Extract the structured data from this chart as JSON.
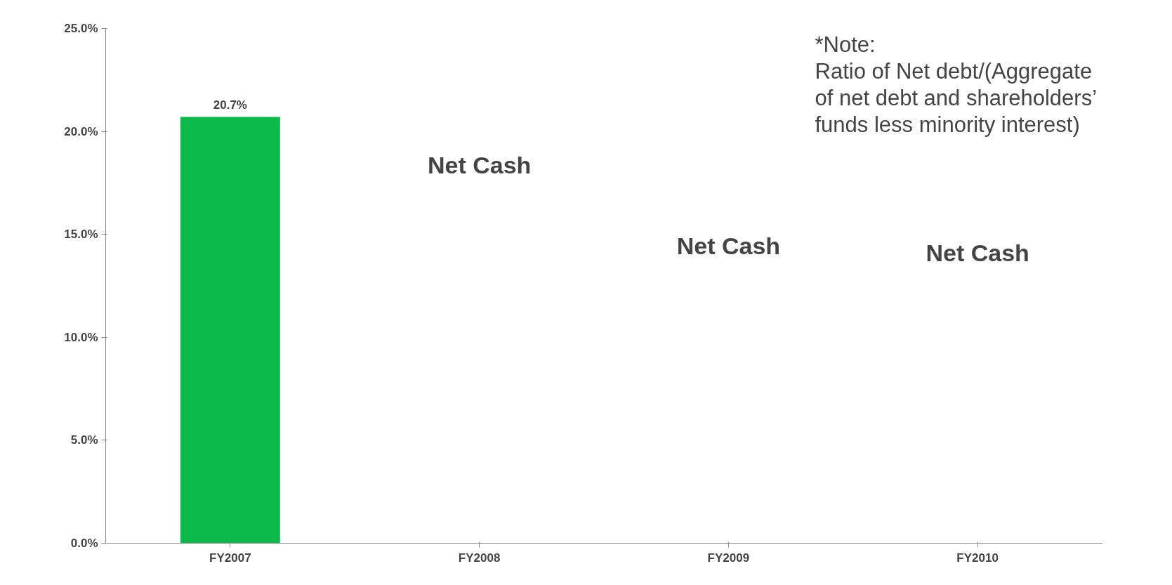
{
  "chart_data": {
    "type": "bar",
    "categories": [
      "FY2007",
      "FY2008",
      "FY2009",
      "FY2010"
    ],
    "values": [
      20.7,
      null,
      null,
      null
    ],
    "color": "#0cba4c",
    "value_labels": [
      "20.7%",
      null,
      null,
      null
    ],
    "ylim": [
      0,
      25
    ],
    "yticks": [
      {
        "value": 0,
        "label": "0.0%"
      },
      {
        "value": 5,
        "label": "5.0%"
      },
      {
        "value": 10,
        "label": "10.0%"
      },
      {
        "value": 15,
        "label": "15.0%"
      },
      {
        "value": 20,
        "label": "20.0%"
      },
      {
        "value": 25,
        "label": "25.0%"
      }
    ],
    "grid": false,
    "annotations": [
      "Net Cash",
      "Net Cash",
      "Net Cash",
      "*Note:\nRatio of Net debt/(Aggregate\nof net debt and shareholders’\nfunds less minority interest)"
    ]
  }
}
